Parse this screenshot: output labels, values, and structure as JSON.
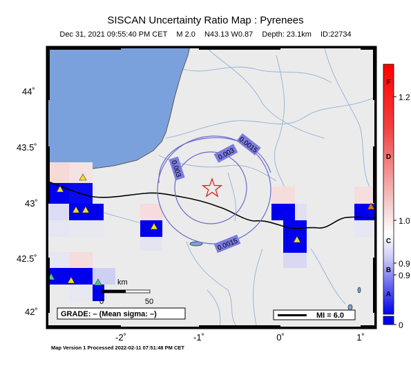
{
  "header": {
    "title": "SISCAN Uncertainty Ratio Map : Pyrenees",
    "datetime": "Dec 31, 2021 09:55:40 PM CET",
    "magnitude": "M 2.0",
    "location": "N43.13 W0.87",
    "depth": "Depth: 23.1km",
    "event_id": "ID:22734"
  },
  "map": {
    "lon_ticks": [
      "-2˚",
      "-1˚",
      "0˚",
      "1˚"
    ],
    "lat_ticks": [
      "44˚",
      "43.5˚",
      "43˚",
      "42.5˚",
      "42˚"
    ],
    "contour_labels": [
      "0.0015",
      "0.003",
      "0.003",
      "0.0015"
    ],
    "grade_box": "GRADE: – (Mean sigma: –)",
    "scale_unit": "km",
    "scale_start": "0",
    "scale_end": "50",
    "mi_legend": "MI = 6.0",
    "colors": {
      "sea": "#7ba1dc",
      "land": "#ebebeb",
      "grid_high": "#0000ee",
      "epicenter": "#e02020"
    }
  },
  "colorbar": {
    "letters": [
      "F",
      "D",
      "C",
      "B",
      "A"
    ],
    "values": [
      "1.2",
      "1.0",
      "0.9",
      "0.9",
      "0"
    ]
  },
  "footer": {
    "version": "Map Version 1 Processed 2022-02-11 07:51:48 PM CET"
  }
}
